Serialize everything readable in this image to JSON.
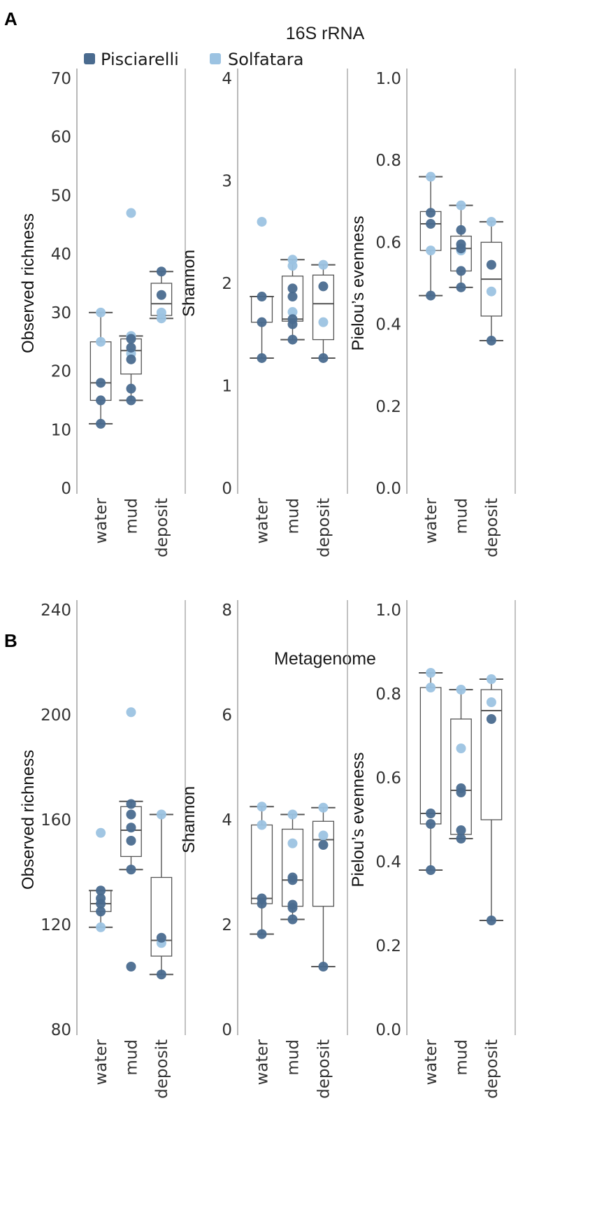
{
  "sections": [
    {
      "label": "A",
      "title": "16S rRNA"
    },
    {
      "label": "B",
      "title": "Metagenome"
    }
  ],
  "legend": [
    {
      "name": "Pisciarelli",
      "color": "#4a6b8f"
    },
    {
      "name": "Solfatara",
      "color": "#9cc3e2"
    }
  ],
  "colors": {
    "pisciarelli": "#4a6b8f",
    "solfatara": "#9cc3e2",
    "box": "#555555",
    "frame": "#999999"
  },
  "chart_data": [
    {
      "type": "box",
      "section": "A",
      "title": "16S rRNA",
      "ylabel": "Observed richness",
      "ylim": [
        0,
        70
      ],
      "yticks": [
        0,
        10,
        20,
        30,
        40,
        50,
        60,
        70
      ],
      "categories": [
        "water",
        "mud",
        "deposit"
      ],
      "boxes": [
        {
          "min": 11,
          "q1": 15,
          "median": 18,
          "q3": 25,
          "max": 30
        },
        {
          "min": 15,
          "q1": 19.5,
          "median": 23.5,
          "q3": 25.5,
          "max": 26
        },
        {
          "min": 29,
          "q1": 29.5,
          "median": 31.5,
          "q3": 35,
          "max": 37
        }
      ],
      "points": [
        {
          "cat": 0,
          "y": 11,
          "site": "Pisciarelli"
        },
        {
          "cat": 0,
          "y": 15,
          "site": "Pisciarelli"
        },
        {
          "cat": 0,
          "y": 18,
          "site": "Pisciarelli"
        },
        {
          "cat": 0,
          "y": 25,
          "site": "Solfatara"
        },
        {
          "cat": 0,
          "y": 30,
          "site": "Solfatara"
        },
        {
          "cat": 1,
          "y": 15,
          "site": "Pisciarelli"
        },
        {
          "cat": 1,
          "y": 17,
          "site": "Pisciarelli"
        },
        {
          "cat": 1,
          "y": 22,
          "site": "Pisciarelli"
        },
        {
          "cat": 1,
          "y": 24,
          "site": "Pisciarelli"
        },
        {
          "cat": 1,
          "y": 25.5,
          "site": "Pisciarelli"
        },
        {
          "cat": 1,
          "y": 23,
          "site": "Solfatara"
        },
        {
          "cat": 1,
          "y": 26,
          "site": "Solfatara"
        },
        {
          "cat": 1,
          "y": 47,
          "site": "Solfatara"
        },
        {
          "cat": 2,
          "y": 33,
          "site": "Pisciarelli"
        },
        {
          "cat": 2,
          "y": 37,
          "site": "Pisciarelli"
        },
        {
          "cat": 2,
          "y": 29,
          "site": "Solfatara"
        },
        {
          "cat": 2,
          "y": 30,
          "site": "Solfatara"
        }
      ]
    },
    {
      "type": "box",
      "section": "A",
      "title": "16S rRNA",
      "ylabel": "Shannon",
      "ylim": [
        0,
        4
      ],
      "yticks": [
        0,
        1,
        2,
        3,
        4
      ],
      "categories": [
        "water",
        "mud",
        "deposit"
      ],
      "boxes": [
        {
          "min": 1.27,
          "q1": 1.62,
          "median": 1.87,
          "q3": 1.87,
          "max": 1.87
        },
        {
          "min": 1.45,
          "q1": 1.63,
          "median": 1.65,
          "q3": 2.07,
          "max": 2.23
        },
        {
          "min": 1.27,
          "q1": 1.45,
          "median": 1.8,
          "q3": 2.08,
          "max": 2.18
        }
      ],
      "points": [
        {
          "cat": 0,
          "y": 1.27,
          "site": "Pisciarelli"
        },
        {
          "cat": 0,
          "y": 1.62,
          "site": "Pisciarelli"
        },
        {
          "cat": 0,
          "y": 1.87,
          "site": "Pisciarelli"
        },
        {
          "cat": 0,
          "y": 2.6,
          "site": "Solfatara"
        },
        {
          "cat": 1,
          "y": 1.45,
          "site": "Pisciarelli"
        },
        {
          "cat": 1,
          "y": 1.6,
          "site": "Pisciarelli"
        },
        {
          "cat": 1,
          "y": 1.65,
          "site": "Pisciarelli"
        },
        {
          "cat": 1,
          "y": 1.87,
          "site": "Pisciarelli"
        },
        {
          "cat": 1,
          "y": 1.95,
          "site": "Pisciarelli"
        },
        {
          "cat": 1,
          "y": 1.72,
          "site": "Solfatara"
        },
        {
          "cat": 1,
          "y": 2.17,
          "site": "Solfatara"
        },
        {
          "cat": 1,
          "y": 2.23,
          "site": "Solfatara"
        },
        {
          "cat": 2,
          "y": 1.27,
          "site": "Pisciarelli"
        },
        {
          "cat": 2,
          "y": 1.97,
          "site": "Pisciarelli"
        },
        {
          "cat": 2,
          "y": 1.62,
          "site": "Solfatara"
        },
        {
          "cat": 2,
          "y": 2.18,
          "site": "Solfatara"
        }
      ]
    },
    {
      "type": "box",
      "section": "A",
      "title": "16S rRNA",
      "ylabel": "Pielou’s evenness",
      "ylim": [
        0,
        1.0
      ],
      "yticks": [
        0.0,
        0.2,
        0.4,
        0.6,
        0.8,
        1.0
      ],
      "yticklabels": [
        "0.0",
        "0.2",
        "0.4",
        "0.6",
        "0.8",
        "1.0"
      ],
      "categories": [
        "water",
        "mud",
        "deposit"
      ],
      "boxes": [
        {
          "min": 0.47,
          "q1": 0.58,
          "median": 0.645,
          "q3": 0.675,
          "max": 0.76
        },
        {
          "min": 0.49,
          "q1": 0.53,
          "median": 0.585,
          "q3": 0.615,
          "max": 0.69
        },
        {
          "min": 0.36,
          "q1": 0.42,
          "median": 0.51,
          "q3": 0.6,
          "max": 0.65
        }
      ],
      "points": [
        {
          "cat": 0,
          "y": 0.47,
          "site": "Pisciarelli"
        },
        {
          "cat": 0,
          "y": 0.645,
          "site": "Pisciarelli"
        },
        {
          "cat": 0,
          "y": 0.672,
          "site": "Pisciarelli"
        },
        {
          "cat": 0,
          "y": 0.58,
          "site": "Solfatara"
        },
        {
          "cat": 0,
          "y": 0.76,
          "site": "Solfatara"
        },
        {
          "cat": 1,
          "y": 0.49,
          "site": "Pisciarelli"
        },
        {
          "cat": 1,
          "y": 0.53,
          "site": "Pisciarelli"
        },
        {
          "cat": 1,
          "y": 0.585,
          "site": "Pisciarelli"
        },
        {
          "cat": 1,
          "y": 0.595,
          "site": "Pisciarelli"
        },
        {
          "cat": 1,
          "y": 0.63,
          "site": "Pisciarelli"
        },
        {
          "cat": 1,
          "y": 0.58,
          "site": "Solfatara"
        },
        {
          "cat": 1,
          "y": 0.69,
          "site": "Solfatara"
        },
        {
          "cat": 2,
          "y": 0.36,
          "site": "Pisciarelli"
        },
        {
          "cat": 2,
          "y": 0.545,
          "site": "Pisciarelli"
        },
        {
          "cat": 2,
          "y": 0.48,
          "site": "Solfatara"
        },
        {
          "cat": 2,
          "y": 0.65,
          "site": "Solfatara"
        }
      ]
    },
    {
      "type": "box",
      "section": "B",
      "title": "Metagenome",
      "ylabel": "Observed richness",
      "ylim": [
        80,
        240
      ],
      "yticks": [
        80,
        120,
        160,
        200,
        240
      ],
      "categories": [
        "water",
        "mud",
        "deposit"
      ],
      "boxes": [
        {
          "min": 119,
          "q1": 125,
          "median": 128,
          "q3": 133,
          "max": 133
        },
        {
          "min": 141,
          "q1": 146,
          "median": 156,
          "q3": 165,
          "max": 167
        },
        {
          "min": 101,
          "q1": 108,
          "median": 114,
          "q3": 138,
          "max": 162
        }
      ],
      "points": [
        {
          "cat": 0,
          "y": 125,
          "site": "Pisciarelli"
        },
        {
          "cat": 0,
          "y": 128,
          "site": "Pisciarelli"
        },
        {
          "cat": 0,
          "y": 130,
          "site": "Pisciarelli"
        },
        {
          "cat": 0,
          "y": 133,
          "site": "Pisciarelli"
        },
        {
          "cat": 0,
          "y": 119,
          "site": "Solfatara"
        },
        {
          "cat": 0,
          "y": 155,
          "site": "Solfatara"
        },
        {
          "cat": 1,
          "y": 104,
          "site": "Pisciarelli"
        },
        {
          "cat": 1,
          "y": 141,
          "site": "Pisciarelli"
        },
        {
          "cat": 1,
          "y": 152,
          "site": "Pisciarelli"
        },
        {
          "cat": 1,
          "y": 157,
          "site": "Pisciarelli"
        },
        {
          "cat": 1,
          "y": 162,
          "site": "Pisciarelli"
        },
        {
          "cat": 1,
          "y": 166,
          "site": "Pisciarelli"
        },
        {
          "cat": 1,
          "y": 201,
          "site": "Solfatara"
        },
        {
          "cat": 2,
          "y": 101,
          "site": "Pisciarelli"
        },
        {
          "cat": 2,
          "y": 115,
          "site": "Pisciarelli"
        },
        {
          "cat": 2,
          "y": 113,
          "site": "Solfatara"
        },
        {
          "cat": 2,
          "y": 162,
          "site": "Solfatara"
        }
      ]
    },
    {
      "type": "box",
      "section": "B",
      "title": "Metagenome",
      "ylabel": "Shannon",
      "ylim": [
        0,
        8
      ],
      "yticks": [
        0,
        2,
        4,
        6,
        8
      ],
      "categories": [
        "water",
        "mud",
        "deposit"
      ],
      "boxes": [
        {
          "min": 1.82,
          "q1": 2.4,
          "median": 2.5,
          "q3": 3.9,
          "max": 4.25
        },
        {
          "min": 2.1,
          "q1": 2.35,
          "median": 2.85,
          "q3": 3.82,
          "max": 4.1
        },
        {
          "min": 1.2,
          "q1": 2.35,
          "median": 3.62,
          "q3": 3.97,
          "max": 4.23
        }
      ],
      "points": [
        {
          "cat": 0,
          "y": 1.82,
          "site": "Pisciarelli"
        },
        {
          "cat": 0,
          "y": 2.4,
          "site": "Pisciarelli"
        },
        {
          "cat": 0,
          "y": 2.5,
          "site": "Pisciarelli"
        },
        {
          "cat": 0,
          "y": 3.9,
          "site": "Solfatara"
        },
        {
          "cat": 0,
          "y": 4.25,
          "site": "Solfatara"
        },
        {
          "cat": 1,
          "y": 2.1,
          "site": "Pisciarelli"
        },
        {
          "cat": 1,
          "y": 2.32,
          "site": "Pisciarelli"
        },
        {
          "cat": 1,
          "y": 2.38,
          "site": "Pisciarelli"
        },
        {
          "cat": 1,
          "y": 2.85,
          "site": "Pisciarelli"
        },
        {
          "cat": 1,
          "y": 2.9,
          "site": "Pisciarelli"
        },
        {
          "cat": 1,
          "y": 3.55,
          "site": "Solfatara"
        },
        {
          "cat": 1,
          "y": 4.1,
          "site": "Solfatara"
        },
        {
          "cat": 2,
          "y": 1.2,
          "site": "Pisciarelli"
        },
        {
          "cat": 2,
          "y": 3.52,
          "site": "Pisciarelli"
        },
        {
          "cat": 2,
          "y": 3.7,
          "site": "Solfatara"
        },
        {
          "cat": 2,
          "y": 4.23,
          "site": "Solfatara"
        }
      ]
    },
    {
      "type": "box",
      "section": "B",
      "title": "Metagenome",
      "ylabel": "Pielou’s evenness",
      "ylim": [
        0,
        1.0
      ],
      "yticks": [
        0.0,
        0.2,
        0.4,
        0.6,
        0.8,
        1.0
      ],
      "yticklabels": [
        "0.0",
        "0.2",
        "0.4",
        "0.6",
        "0.8",
        "1.0"
      ],
      "categories": [
        "water",
        "mud",
        "deposit"
      ],
      "boxes": [
        {
          "min": 0.38,
          "q1": 0.49,
          "median": 0.515,
          "q3": 0.815,
          "max": 0.85
        },
        {
          "min": 0.455,
          "q1": 0.465,
          "median": 0.57,
          "q3": 0.74,
          "max": 0.81
        },
        {
          "min": 0.26,
          "q1": 0.5,
          "median": 0.76,
          "q3": 0.81,
          "max": 0.835
        }
      ],
      "points": [
        {
          "cat": 0,
          "y": 0.38,
          "site": "Pisciarelli"
        },
        {
          "cat": 0,
          "y": 0.49,
          "site": "Pisciarelli"
        },
        {
          "cat": 0,
          "y": 0.515,
          "site": "Pisciarelli"
        },
        {
          "cat": 0,
          "y": 0.815,
          "site": "Solfatara"
        },
        {
          "cat": 0,
          "y": 0.85,
          "site": "Solfatara"
        },
        {
          "cat": 1,
          "y": 0.455,
          "site": "Pisciarelli"
        },
        {
          "cat": 1,
          "y": 0.475,
          "site": "Pisciarelli"
        },
        {
          "cat": 1,
          "y": 0.565,
          "site": "Pisciarelli"
        },
        {
          "cat": 1,
          "y": 0.575,
          "site": "Pisciarelli"
        },
        {
          "cat": 1,
          "y": 0.67,
          "site": "Solfatara"
        },
        {
          "cat": 1,
          "y": 0.81,
          "site": "Solfatara"
        },
        {
          "cat": 2,
          "y": 0.26,
          "site": "Pisciarelli"
        },
        {
          "cat": 2,
          "y": 0.74,
          "site": "Pisciarelli"
        },
        {
          "cat": 2,
          "y": 0.78,
          "site": "Solfatara"
        },
        {
          "cat": 2,
          "y": 0.835,
          "site": "Solfatara"
        }
      ]
    }
  ]
}
